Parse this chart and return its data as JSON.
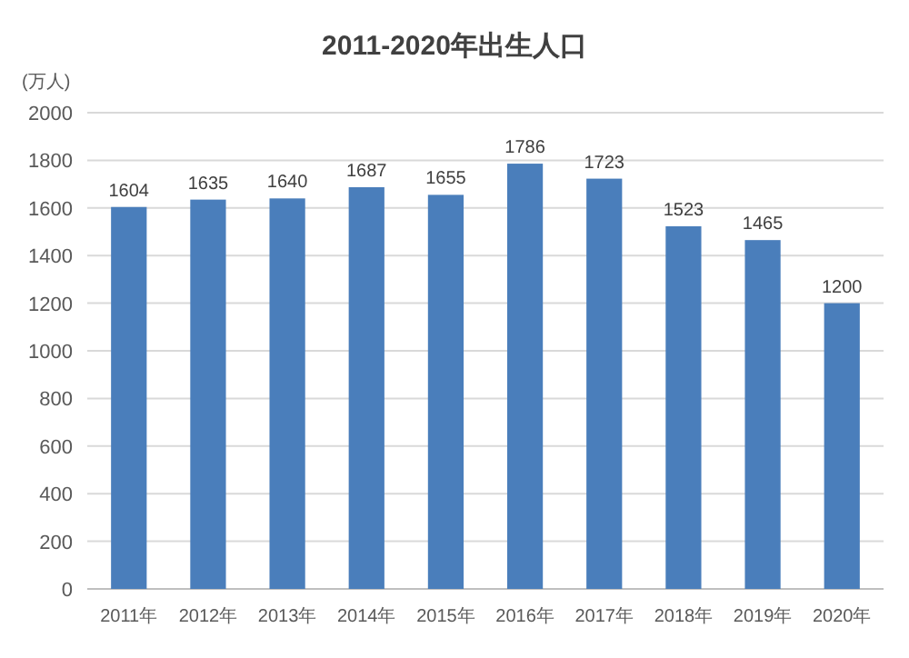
{
  "chart_data": {
    "type": "bar",
    "title": "2011-2020年出生人口",
    "ylabel": "(万人)",
    "categories": [
      "2011年",
      "2012年",
      "2013年",
      "2014年",
      "2015年",
      "2016年",
      "2017年",
      "2018年",
      "2019年",
      "2020年"
    ],
    "values": [
      1604,
      1635,
      1640,
      1687,
      1655,
      1786,
      1723,
      1523,
      1465,
      1200
    ],
    "color": "#4a7ebb",
    "ylim": [
      0,
      2000
    ],
    "yticks": [
      0,
      200,
      400,
      600,
      800,
      1000,
      1200,
      1400,
      1600,
      1800,
      2000
    ],
    "grid": "y",
    "data_labels": true
  }
}
